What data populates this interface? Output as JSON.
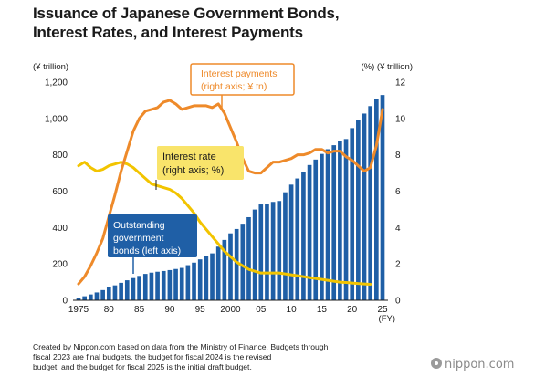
{
  "title_line1": "Issuance of Japanese Government Bonds,",
  "title_line2": "Interest Rates, and Interest Payments",
  "footer": {
    "line1": "Created by Nippon.com based on data from the Ministry of Finance. Budgets through",
    "line2": "fiscal 2023 are final budgets, the budget for fiscal 2024 is the revised",
    "line3": "budget, and the budget for fiscal 2025 is the initial draft budget."
  },
  "logo_text": "nippon.com",
  "colors": {
    "bar": "#1f5fa6",
    "interest_rate": "#f2c400",
    "interest_payments": "#ee8a2a",
    "label_box": "#1f5fa6"
  },
  "chart_data": {
    "type": "bar+line",
    "title": "Issuance of Japanese Government Bonds, Interest Rates, and Interest Payments",
    "left_unit": "(¥ trillion)",
    "right_unit": "(%) (¥ trillion)",
    "xlabel_unit": "(FY)",
    "x_start": 1975,
    "x_end": 2025,
    "x_tick_labels": [
      "1975",
      "80",
      "85",
      "90",
      "95",
      "2000",
      "05",
      "10",
      "15",
      "20",
      "25"
    ],
    "y_left_ticks": [
      "0",
      "200",
      "400",
      "600",
      "800",
      "1,000",
      "1,200"
    ],
    "y_right_ticks": [
      "0",
      "2",
      "4",
      "6",
      "8",
      "10",
      "12"
    ],
    "ylim_left": [
      0,
      1200
    ],
    "ylim_right": [
      0,
      12
    ],
    "grid": false,
    "series": [
      {
        "name": "Outstanding government bonds (left axis)",
        "label_lines": [
          "Outstanding",
          "government",
          "bonds (left axis)"
        ],
        "axis": "left",
        "type": "bar",
        "years": [
          1975,
          1976,
          1977,
          1978,
          1979,
          1980,
          1981,
          1982,
          1983,
          1984,
          1985,
          1986,
          1987,
          1988,
          1989,
          1990,
          1991,
          1992,
          1993,
          1994,
          1995,
          1996,
          1997,
          1998,
          1999,
          2000,
          2001,
          2002,
          2003,
          2004,
          2005,
          2006,
          2007,
          2008,
          2009,
          2010,
          2011,
          2012,
          2013,
          2014,
          2015,
          2016,
          2017,
          2018,
          2019,
          2020,
          2021,
          2022,
          2023,
          2024,
          2025
        ],
        "values": [
          15,
          22,
          32,
          43,
          56,
          71,
          82,
          96,
          110,
          122,
          134,
          145,
          152,
          157,
          161,
          166,
          172,
          178,
          193,
          207,
          225,
          245,
          258,
          295,
          332,
          368,
          392,
          421,
          457,
          499,
          527,
          532,
          541,
          546,
          594,
          636,
          670,
          705,
          744,
          774,
          805,
          831,
          853,
          874,
          887,
          947,
          991,
          1027,
          1068,
          1105,
          1129
        ]
      },
      {
        "name": "Interest rate (right axis; %)",
        "label_lines": [
          "Interest rate",
          "(right axis; %)"
        ],
        "axis": "right",
        "type": "line",
        "years": [
          1975,
          1976,
          1977,
          1978,
          1979,
          1980,
          1981,
          1982,
          1983,
          1984,
          1985,
          1986,
          1987,
          1988,
          1989,
          1990,
          1991,
          1992,
          1993,
          1994,
          1995,
          1996,
          1997,
          1998,
          1999,
          2000,
          2001,
          2002,
          2003,
          2004,
          2005,
          2006,
          2007,
          2008,
          2009,
          2010,
          2011,
          2012,
          2013,
          2014,
          2015,
          2016,
          2017,
          2018,
          2019,
          2020,
          2021,
          2022,
          2023
        ],
        "values": [
          7.4,
          7.6,
          7.3,
          7.1,
          7.2,
          7.4,
          7.5,
          7.6,
          7.5,
          7.3,
          7.0,
          6.7,
          6.4,
          6.3,
          6.2,
          6.1,
          5.9,
          5.6,
          5.2,
          4.8,
          4.3,
          3.9,
          3.5,
          3.1,
          2.7,
          2.4,
          2.1,
          1.9,
          1.7,
          1.6,
          1.5,
          1.5,
          1.5,
          1.5,
          1.45,
          1.4,
          1.35,
          1.3,
          1.25,
          1.2,
          1.15,
          1.1,
          1.05,
          1.0,
          0.98,
          0.95,
          0.92,
          0.9,
          0.88
        ]
      },
      {
        "name": "Interest payments (right axis; ¥ tn)",
        "label_lines": [
          "Interest payments",
          "(right axis; ¥ tn)"
        ],
        "axis": "right",
        "type": "line",
        "years": [
          1975,
          1976,
          1977,
          1978,
          1979,
          1980,
          1981,
          1982,
          1983,
          1984,
          1985,
          1986,
          1987,
          1988,
          1989,
          1990,
          1991,
          1992,
          1993,
          1994,
          1995,
          1996,
          1997,
          1998,
          1999,
          2000,
          2001,
          2002,
          2003,
          2004,
          2005,
          2006,
          2007,
          2008,
          2009,
          2010,
          2011,
          2012,
          2013,
          2014,
          2015,
          2016,
          2017,
          2018,
          2019,
          2020,
          2021,
          2022,
          2023,
          2024,
          2025
        ],
        "values": [
          0.9,
          1.3,
          1.9,
          2.6,
          3.4,
          4.6,
          5.8,
          7.1,
          8.2,
          9.3,
          10.0,
          10.4,
          10.5,
          10.6,
          10.9,
          11.0,
          10.8,
          10.5,
          10.6,
          10.7,
          10.7,
          10.7,
          10.6,
          10.8,
          10.3,
          9.5,
          8.7,
          7.8,
          7.1,
          7.0,
          7.0,
          7.3,
          7.6,
          7.6,
          7.7,
          7.8,
          8.0,
          8.0,
          8.1,
          8.3,
          8.3,
          8.1,
          8.2,
          8.2,
          7.9,
          7.7,
          7.4,
          7.1,
          7.3,
          8.5,
          10.5
        ]
      }
    ]
  }
}
